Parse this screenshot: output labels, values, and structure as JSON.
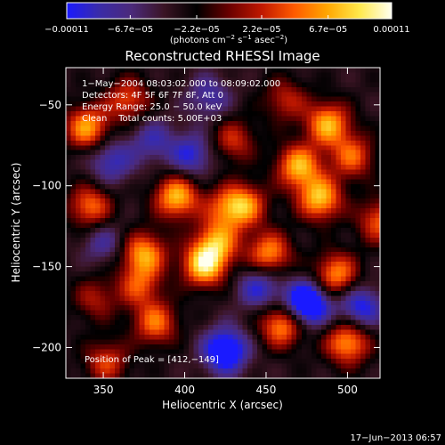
{
  "chart_data": {
    "type": "heatmap",
    "title": "Reconstructed RHESSI Image",
    "xlabel": "Heliocentric X (arcsec)",
    "ylabel": "Heliocentric Y (arcsec)",
    "xlim": [
      327,
      520
    ],
    "ylim": [
      -219,
      -27
    ],
    "x_ticks": [
      350,
      400,
      450,
      500
    ],
    "x_tick_labels": [
      "350",
      "400",
      "450",
      "500"
    ],
    "y_ticks": [
      -50,
      -100,
      -150,
      -200
    ],
    "y_tick_labels": [
      "−50",
      "−100",
      "−150",
      "−200"
    ],
    "colorbar": {
      "range": [
        -0.00011,
        0.00011
      ],
      "tick_values": [
        -0.00011,
        -6.7e-05,
        -2.2e-05,
        2.2e-05,
        6.7e-05,
        0.00011
      ],
      "tick_labels": [
        "−0.00011",
        "−6.7e−05",
        "−2.2e−05",
        "2.2e−05",
        "6.7e−05",
        "0.00011"
      ],
      "units_prefix": "(photons cm",
      "units_exp1": "−2",
      "units_mid": " s",
      "units_exp2": "−1",
      "units_suffix1": " asec",
      "units_exp3": "−2",
      "units_close": ")",
      "colors": [
        "#1a1aff",
        "#3a2ba8",
        "#4b2a7a",
        "#3a1424",
        "#000000",
        "#6a0000",
        "#c01800",
        "#ff5a00",
        "#ffa500",
        "#ffe84a",
        "#fffff0"
      ]
    },
    "annotations": [
      "1−May−2004 08:03:02.000 to 08:09:02.000",
      "Detectors: 4F 5F 6F 7F 8F, Att 0",
      "Energy Range: 25.0 − 50.0 keV",
      "Clean    Total counts: 5.00E+03"
    ],
    "peak_label": "Position of Peak = [412,−149]",
    "peak": [
      412,
      -149
    ],
    "grid": false,
    "sources": [
      {
        "x": 340,
        "y": -64,
        "v": 0.9
      },
      {
        "x": 365,
        "y": -47,
        "v": 0.65
      },
      {
        "x": 342,
        "y": -113,
        "v": 0.75
      },
      {
        "x": 375,
        "y": -142,
        "v": 0.9
      },
      {
        "x": 395,
        "y": -107,
        "v": 1.0
      },
      {
        "x": 412,
        "y": -149,
        "v": 1.1
      },
      {
        "x": 420,
        "y": -135,
        "v": 0.8
      },
      {
        "x": 425,
        "y": -114,
        "v": 0.55
      },
      {
        "x": 437,
        "y": -112,
        "v": 0.8
      },
      {
        "x": 470,
        "y": -88,
        "v": 0.95
      },
      {
        "x": 488,
        "y": -62,
        "v": 0.95
      },
      {
        "x": 503,
        "y": -82,
        "v": 0.7
      },
      {
        "x": 483,
        "y": -108,
        "v": 1.0
      },
      {
        "x": 452,
        "y": -142,
        "v": 0.85
      },
      {
        "x": 493,
        "y": -155,
        "v": 0.85
      },
      {
        "x": 460,
        "y": -186,
        "v": 0.9
      },
      {
        "x": 500,
        "y": -197,
        "v": 0.9
      },
      {
        "x": 382,
        "y": -185,
        "v": 0.75
      },
      {
        "x": 352,
        "y": -209,
        "v": 0.6
      },
      {
        "x": 430,
        "y": -72,
        "v": 0.55
      },
      {
        "x": 372,
        "y": -162,
        "v": 0.6
      },
      {
        "x": 345,
        "y": -170,
        "v": 0.45
      },
      {
        "x": 462,
        "y": -47,
        "v": 0.5
      },
      {
        "x": 520,
        "y": -122,
        "v": 0.7
      },
      {
        "x": 404,
        "y": -81,
        "v": -0.6
      },
      {
        "x": 475,
        "y": -173,
        "v": -1.2
      },
      {
        "x": 425,
        "y": -202,
        "v": -1.0
      },
      {
        "x": 355,
        "y": -85,
        "v": -0.55
      },
      {
        "x": 446,
        "y": -163,
        "v": -0.6
      },
      {
        "x": 380,
        "y": -72,
        "v": -0.45
      },
      {
        "x": 508,
        "y": -175,
        "v": -0.7
      },
      {
        "x": 415,
        "y": -45,
        "v": -0.45
      },
      {
        "x": 350,
        "y": -135,
        "v": -0.4
      }
    ]
  },
  "footer": {
    "timestamp": "17−Jun−2013 06:57"
  }
}
